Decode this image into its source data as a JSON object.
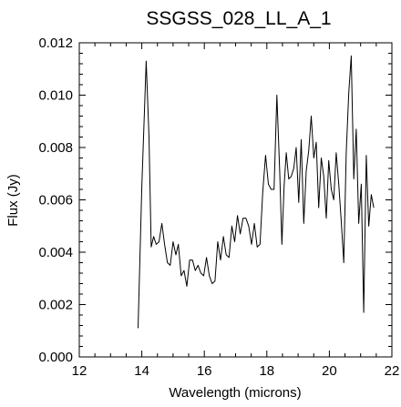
{
  "chart_data": {
    "type": "line",
    "title": "SSGSS_028_LL_A_1",
    "xlabel": "Wavelength (microns)",
    "ylabel": "Flux (Jy)",
    "xlim": [
      12,
      22
    ],
    "ylim": [
      0.0,
      0.012
    ],
    "xticks": [
      12,
      14,
      16,
      18,
      20,
      22
    ],
    "xtick_labels": [
      "12",
      "14",
      "16",
      "18",
      "20",
      "22"
    ],
    "yticks": [
      0.0,
      0.002,
      0.004,
      0.006,
      0.008,
      0.01,
      0.012
    ],
    "ytick_labels": [
      "0.000",
      "0.002",
      "0.004",
      "0.006",
      "0.008",
      "0.010",
      "0.012"
    ],
    "grid": false,
    "legend": "none",
    "line_color": "#000000",
    "series": [
      {
        "x": [
          13.88,
          14.0,
          14.14,
          14.23,
          14.3,
          14.38,
          14.46,
          14.55,
          14.64,
          14.73,
          14.82,
          14.91,
          15.0,
          15.09,
          15.17,
          15.26,
          15.35,
          15.44,
          15.53,
          15.62,
          15.71,
          15.8,
          15.89,
          15.98,
          16.07,
          16.16,
          16.25,
          16.34,
          16.43,
          16.52,
          16.61,
          16.7,
          16.79,
          16.88,
          16.97,
          17.06,
          17.15,
          17.24,
          17.33,
          17.42,
          17.51,
          17.6,
          17.69,
          17.78,
          17.87,
          17.96,
          18.05,
          18.14,
          18.23,
          18.32,
          18.41,
          18.48,
          18.55,
          18.62,
          18.7,
          18.78,
          18.86,
          18.94,
          19.02,
          19.1,
          19.18,
          19.26,
          19.34,
          19.42,
          19.5,
          19.58,
          19.66,
          19.74,
          19.82,
          19.9,
          19.98,
          20.06,
          20.14,
          20.22,
          20.3,
          20.38,
          20.46,
          20.54,
          20.62,
          20.7,
          20.78,
          20.86,
          20.94,
          21.02,
          21.1,
          21.18,
          21.26,
          21.34,
          21.42
        ],
        "y": [
          0.0011,
          0.0065,
          0.0113,
          0.0084,
          0.0042,
          0.0046,
          0.0043,
          0.0044,
          0.0051,
          0.0043,
          0.0036,
          0.0035,
          0.0044,
          0.0039,
          0.0043,
          0.0031,
          0.0033,
          0.0027,
          0.0037,
          0.0037,
          0.0033,
          0.0035,
          0.0032,
          0.0031,
          0.0038,
          0.0031,
          0.0028,
          0.0029,
          0.0044,
          0.0037,
          0.0046,
          0.0039,
          0.0038,
          0.005,
          0.0044,
          0.0054,
          0.0047,
          0.0053,
          0.0053,
          0.005,
          0.0043,
          0.0051,
          0.0042,
          0.0043,
          0.0063,
          0.0077,
          0.0066,
          0.0064,
          0.0064,
          0.01,
          0.0071,
          0.0043,
          0.0065,
          0.0078,
          0.0068,
          0.0069,
          0.0072,
          0.008,
          0.0059,
          0.0083,
          0.0051,
          0.0071,
          0.0079,
          0.0092,
          0.0076,
          0.0082,
          0.0057,
          0.0076,
          0.0069,
          0.0053,
          0.0075,
          0.0064,
          0.006,
          0.0078,
          0.0066,
          0.0052,
          0.0036,
          0.0078,
          0.0101,
          0.0115,
          0.0068,
          0.0087,
          0.0051,
          0.0066,
          0.0017,
          0.0077,
          0.005,
          0.0062,
          0.0057
        ]
      }
    ]
  }
}
